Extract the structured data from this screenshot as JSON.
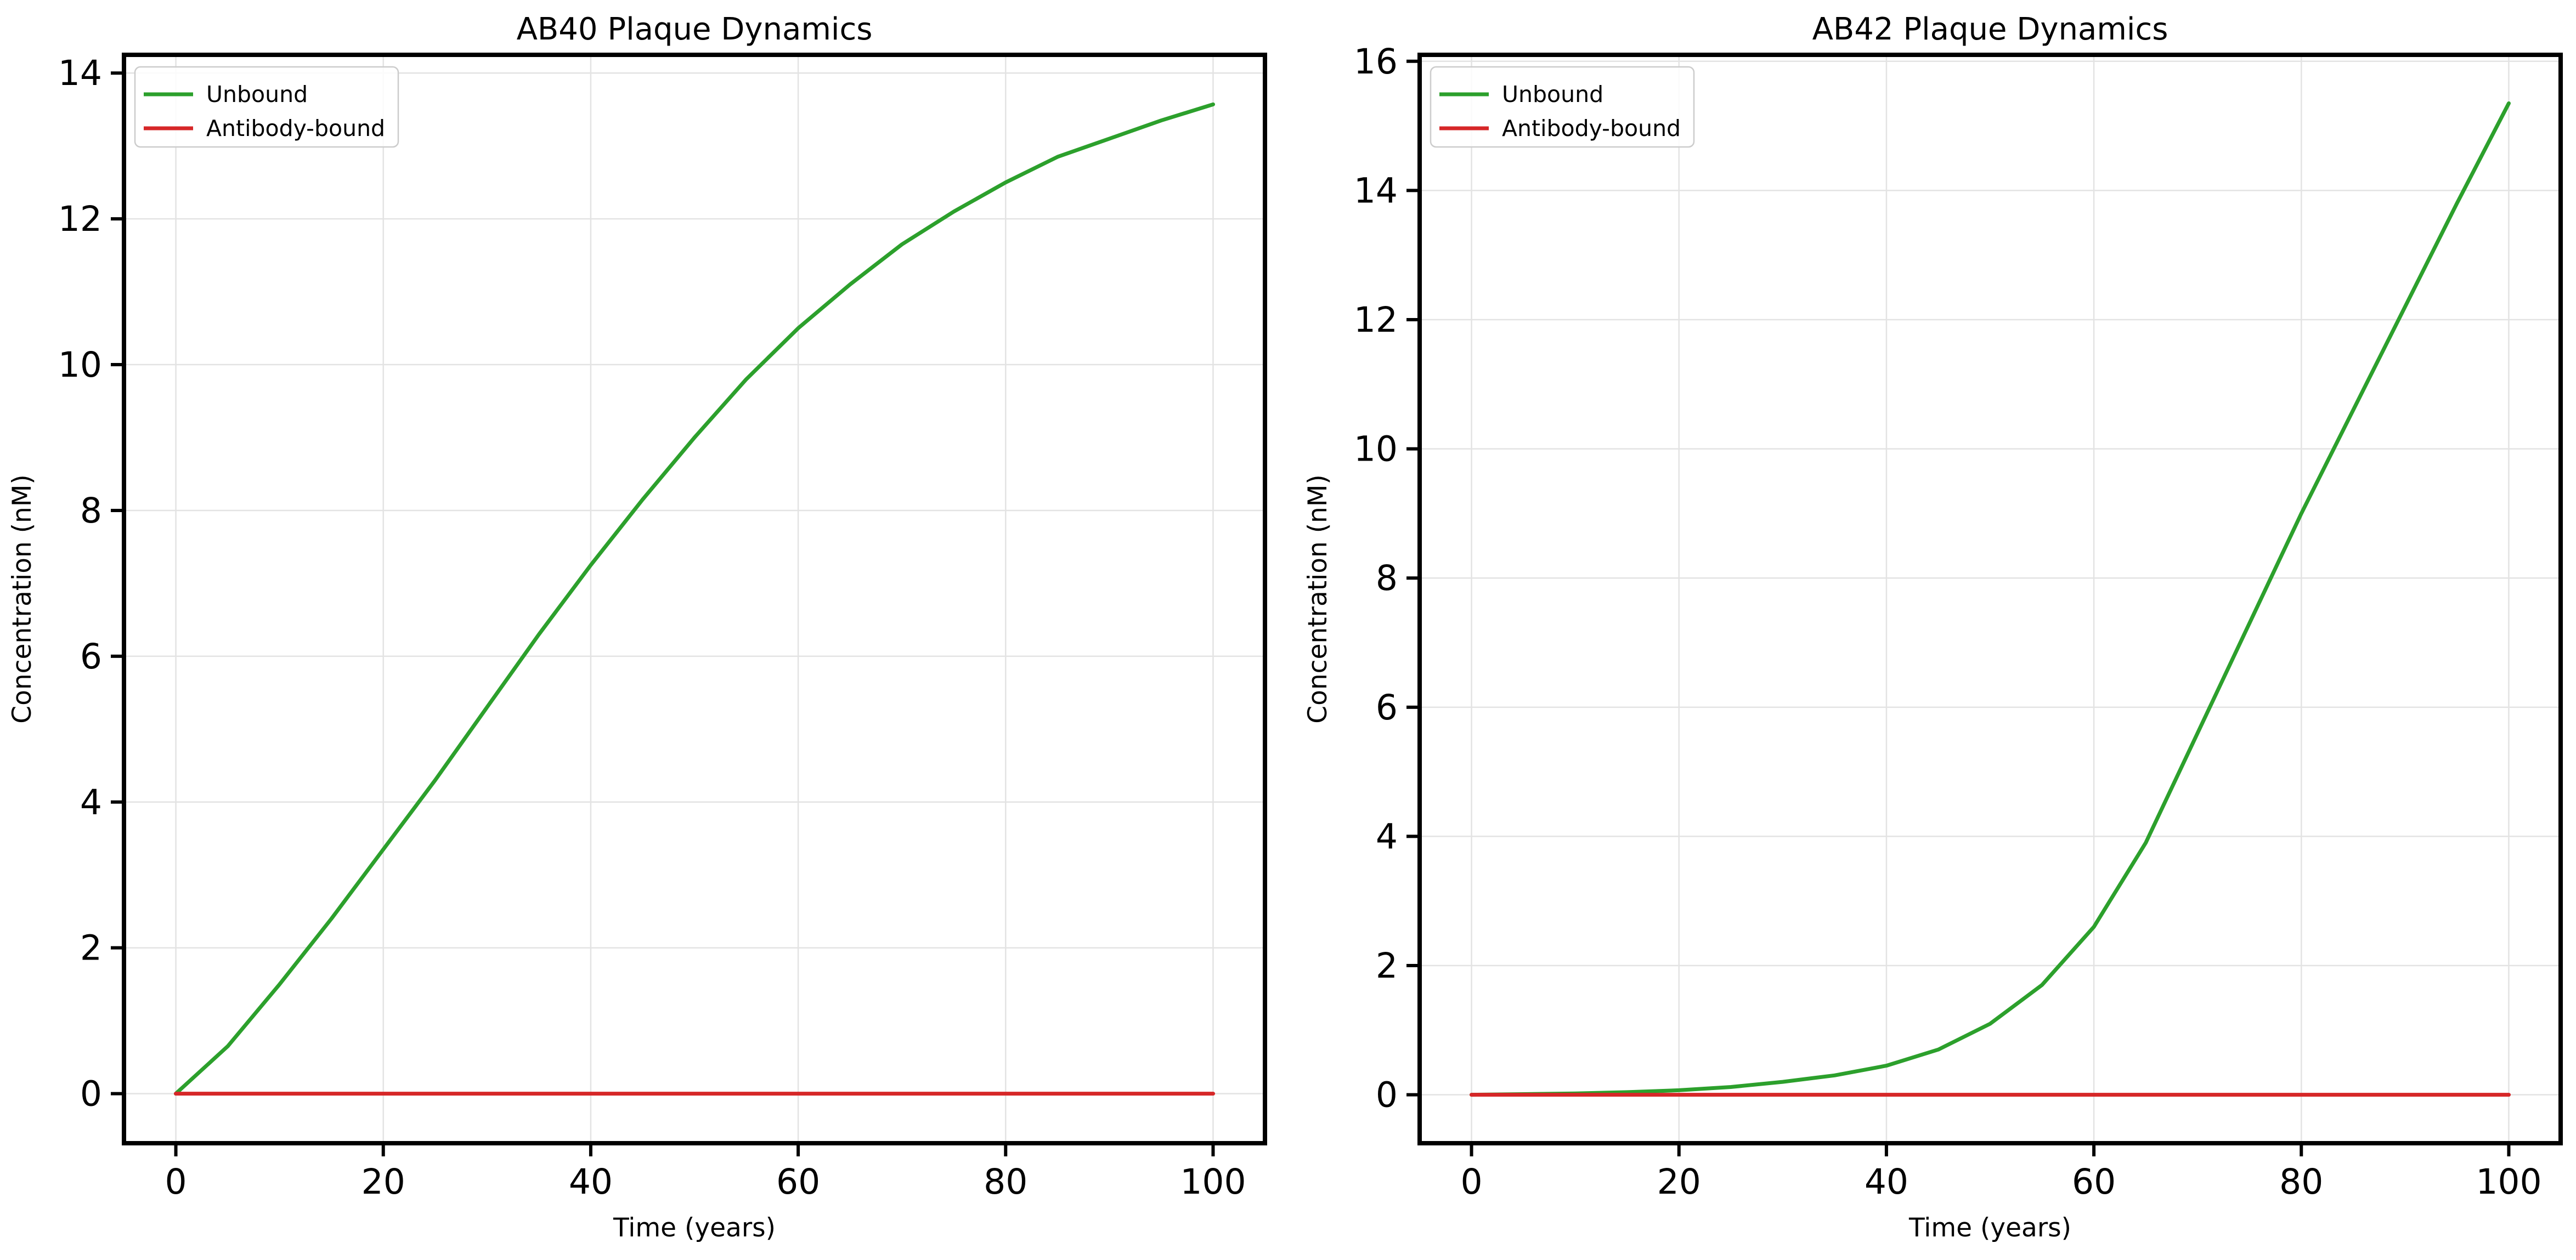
{
  "chart_data": [
    {
      "type": "line",
      "title": "AB40 Plaque Dynamics",
      "xlabel": "Time (years)",
      "ylabel": "Concentration (nM)",
      "xlim": [
        -5,
        105
      ],
      "ylim": [
        -0.68,
        14.25
      ],
      "xticks": [
        0,
        20,
        40,
        60,
        80,
        100
      ],
      "yticks": [
        0,
        2,
        4,
        6,
        8,
        10,
        12,
        14
      ],
      "grid": true,
      "legend_position": "upper-left",
      "series": [
        {
          "name": "Unbound",
          "color": "#2ca02c",
          "x": [
            0,
            5,
            10,
            15,
            20,
            25,
            30,
            35,
            40,
            45,
            50,
            55,
            60,
            65,
            70,
            75,
            80,
            85,
            90,
            95,
            100
          ],
          "y": [
            0,
            0.65,
            1.5,
            2.4,
            3.35,
            4.3,
            5.3,
            6.3,
            7.25,
            8.15,
            9.0,
            9.8,
            10.5,
            11.1,
            11.65,
            12.1,
            12.5,
            12.85,
            13.1,
            13.35,
            13.57
          ]
        },
        {
          "name": "Antibody-bound",
          "color": "#d62728",
          "x": [
            0,
            100
          ],
          "y": [
            0,
            0
          ]
        }
      ]
    },
    {
      "type": "line",
      "title": "AB42 Plaque Dynamics",
      "xlabel": "Time (years)",
      "ylabel": "Concentration (nM)",
      "xlim": [
        -5,
        105
      ],
      "ylim": [
        -0.75,
        16.1
      ],
      "xticks": [
        0,
        20,
        40,
        60,
        80,
        100
      ],
      "yticks": [
        0,
        2,
        4,
        6,
        8,
        10,
        12,
        14,
        16
      ],
      "grid": true,
      "legend_position": "upper-left",
      "series": [
        {
          "name": "Unbound",
          "color": "#2ca02c",
          "x": [
            0,
            5,
            10,
            15,
            20,
            25,
            30,
            35,
            40,
            45,
            50,
            55,
            60,
            65,
            70,
            75,
            80,
            85,
            90,
            95,
            100
          ],
          "y": [
            0,
            0.01,
            0.02,
            0.04,
            0.07,
            0.12,
            0.2,
            0.3,
            0.45,
            0.7,
            1.1,
            1.7,
            2.6,
            3.9,
            5.6,
            7.3,
            9.0,
            10.6,
            12.2,
            13.8,
            15.35
          ]
        },
        {
          "name": "Antibody-bound",
          "color": "#d62728",
          "x": [
            0,
            100
          ],
          "y": [
            0,
            0
          ]
        }
      ]
    }
  ]
}
